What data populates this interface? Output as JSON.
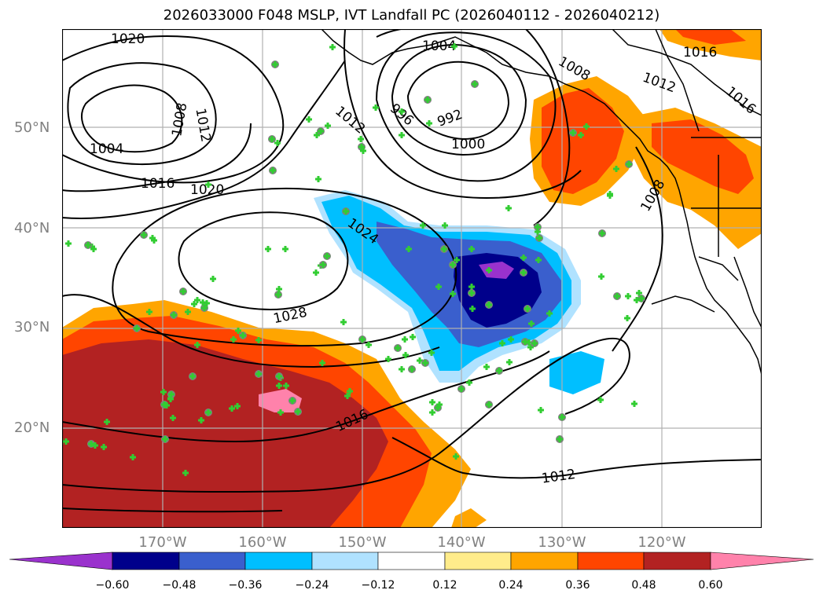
{
  "title": "2026033000 F048 MSLP, IVT Landfall PC (2026040112 - 2026040212)",
  "latitude_labels": [
    "50°N",
    "40°N",
    "30°N",
    "20°N"
  ],
  "longitude_labels": [
    "170°W",
    "160°W",
    "150°W",
    "140°W",
    "130°W",
    "120°W"
  ],
  "colorbar": {
    "tick_labels": [
      "−0.60",
      "−0.48",
      "−0.36",
      "−0.24",
      "−0.12",
      "0.12",
      "0.24",
      "0.36",
      "0.48",
      "0.60"
    ],
    "colors": [
      "#9a32cd",
      "#00008b",
      "#3a5fcd",
      "#00bfff",
      "#b0e2ff",
      "#ffffff",
      "#ffec8b",
      "#ffa500",
      "#ff4500",
      "#b22222",
      "#ff82ab"
    ]
  },
  "contour_labels": [
    "1020",
    "1004",
    "1008",
    "1012",
    "1016",
    "1020",
    "1004",
    "1012",
    "996",
    "992",
    "1000",
    "1008",
    "1012",
    "1016",
    "1016",
    "1008",
    "1024",
    "1028",
    "1016",
    "1012"
  ],
  "marker_color": "#32cd32"
}
